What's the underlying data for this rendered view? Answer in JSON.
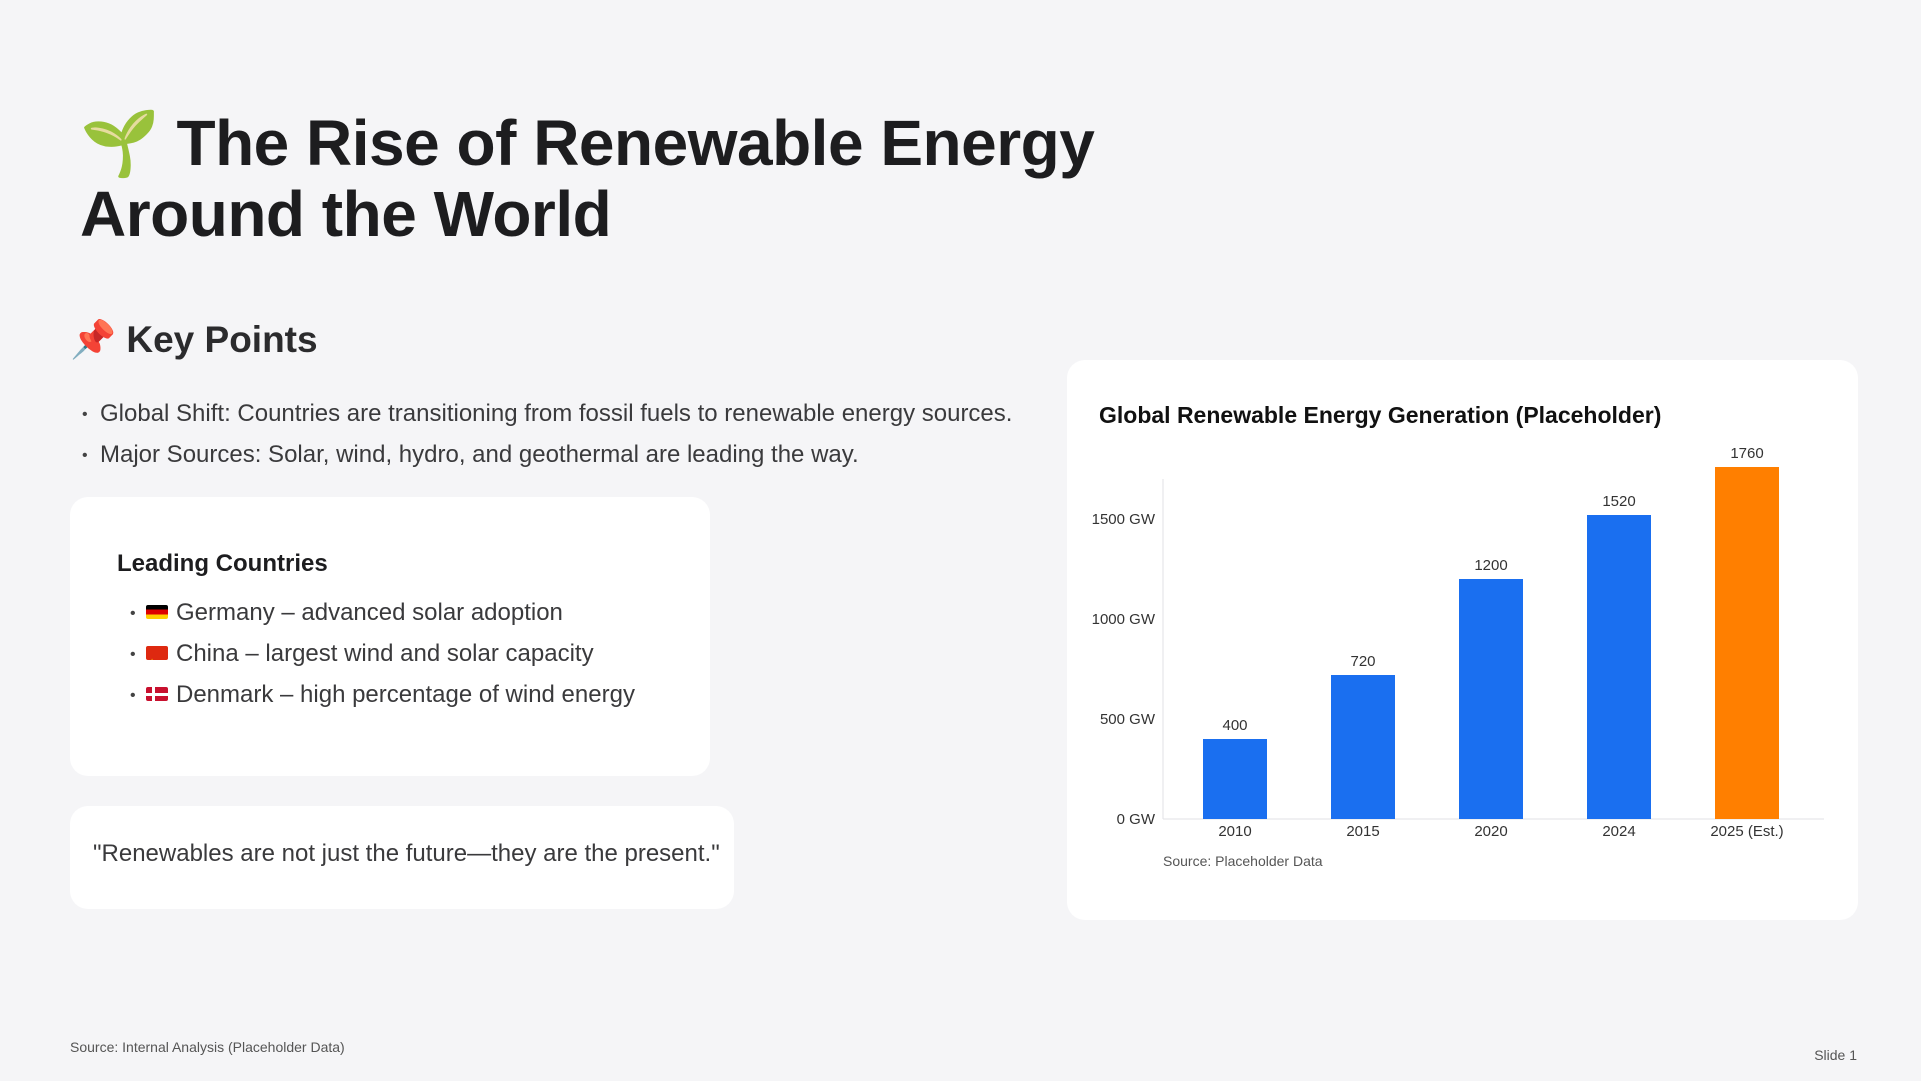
{
  "title": {
    "icon": "seedling-icon",
    "emoji": "🌱",
    "line1": "The Rise of Renewable Energy",
    "line2": "Around the World"
  },
  "key_points": {
    "icon": "pushpin-icon",
    "emoji": "📌",
    "heading": "Key Points",
    "items": [
      "Global Shift: Countries are transitioning from fossil fuels to renewable energy sources.",
      "Major Sources: Solar, wind, hydro, and geothermal are leading the way."
    ]
  },
  "leading_countries": {
    "heading": "Leading Countries",
    "items": [
      {
        "flag": "germany-flag-icon",
        "text": "Germany – advanced solar adoption"
      },
      {
        "flag": "china-flag-icon",
        "text": "China – largest wind and solar capacity"
      },
      {
        "flag": "denmark-flag-icon",
        "text": "Denmark – high percentage of wind energy"
      }
    ]
  },
  "quote": "\"Renewables are not just the future—they are the present.\"",
  "chart_data": {
    "type": "bar",
    "title": "Global Renewable Energy Generation (Placeholder)",
    "categories": [
      "2010",
      "2015",
      "2020",
      "2024",
      "2025 (Est.)"
    ],
    "values": [
      400,
      720,
      1200,
      1520,
      1760
    ],
    "value_labels": [
      "400",
      "720",
      "1200",
      "1520",
      "1760"
    ],
    "bar_colors": [
      "#1a6ff0",
      "#1a6ff0",
      "#1a6ff0",
      "#1a6ff0",
      "#ff7f00"
    ],
    "y_ticks": [
      0,
      500,
      1000,
      1500
    ],
    "y_tick_labels": [
      "0 GW",
      "500 GW",
      "1000 GW",
      "1500 GW"
    ],
    "ylim": [
      0,
      1700
    ],
    "grid": false,
    "legend": "none",
    "source": "Source: Placeholder Data"
  },
  "footer": {
    "source": "Source: Internal Analysis (Placeholder Data)",
    "slide": "Slide 1"
  }
}
